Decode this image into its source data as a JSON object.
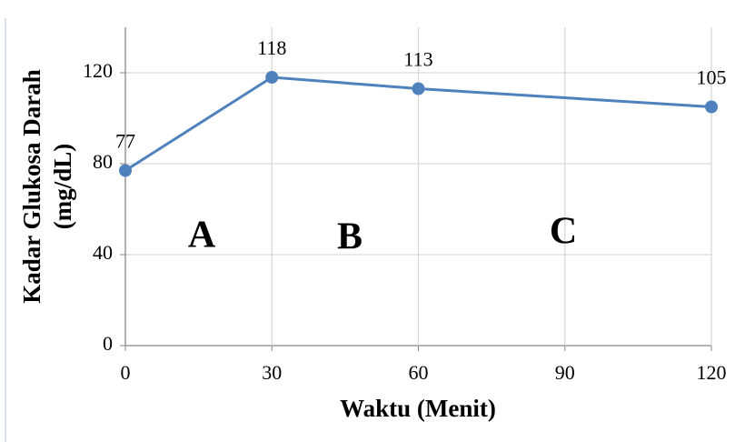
{
  "chart_data": {
    "type": "line",
    "x": [
      0,
      30,
      60,
      120
    ],
    "values": [
      77,
      118,
      113,
      105
    ],
    "color": "#4f81bd",
    "xlabel": "Waktu (Menit)",
    "ylabel": [
      "Kadar Glukosa Darah",
      "(mg/dL)"
    ],
    "annotations": [
      "A",
      "B",
      "C"
    ],
    "xlim": [
      0,
      120
    ],
    "xticks": [
      0,
      30,
      60,
      90,
      120
    ],
    "ylim": [
      0,
      140
    ],
    "yticks": [
      0,
      40,
      80,
      120
    ],
    "grid": true
  }
}
